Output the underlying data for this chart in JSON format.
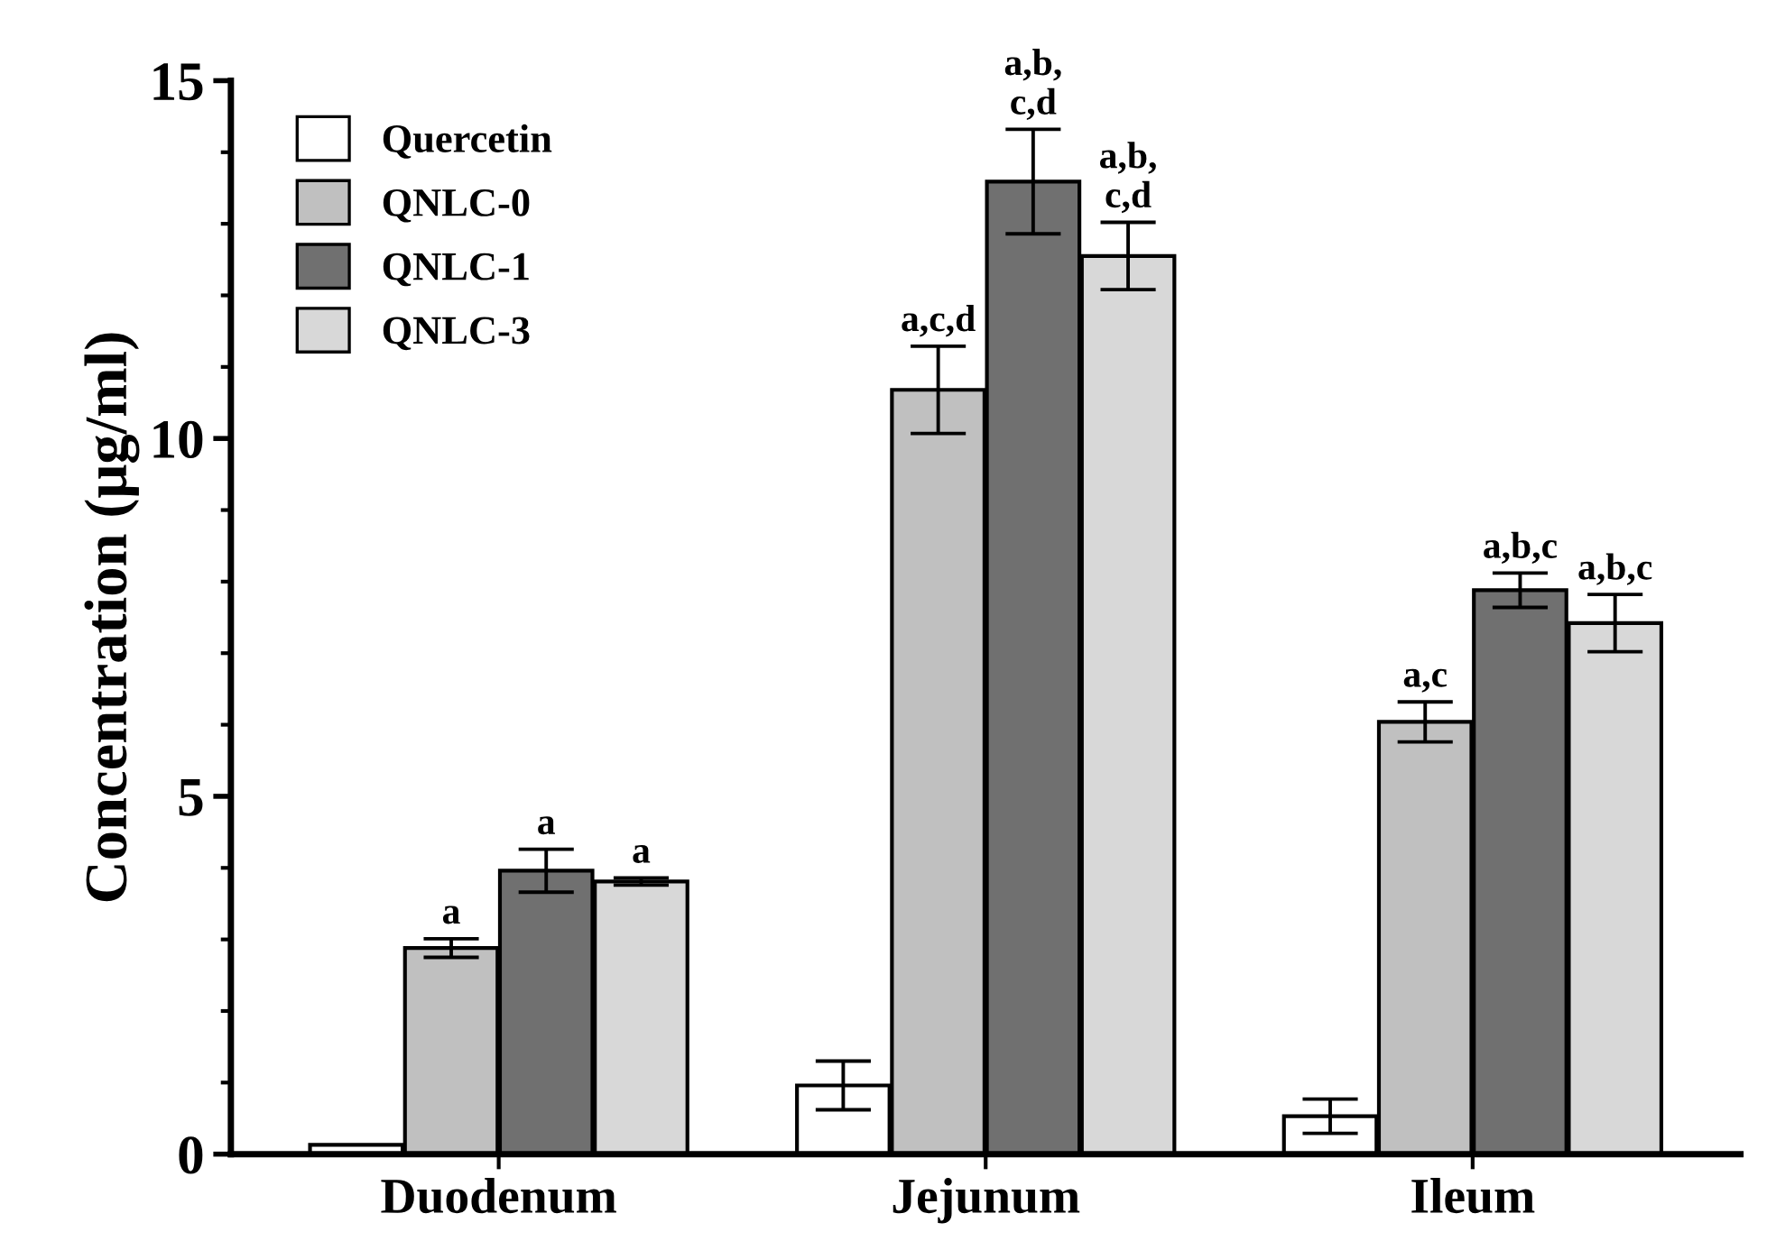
{
  "chart_data": {
    "type": "bar",
    "ylabel": "Concentration (μg/ml)",
    "categories": [
      "Duodenum",
      "Jejunum",
      "Ileum"
    ],
    "series": [
      {
        "name": "Quercetin",
        "color": "#ffffff",
        "values": [
          0.13,
          0.96,
          0.53
        ],
        "errors": [
          null,
          0.34,
          0.24
        ],
        "value_labels": [
          null,
          null,
          null
        ]
      },
      {
        "name": "QNLC-0",
        "color": "#c0c0c0",
        "values": [
          2.88,
          10.68,
          6.04
        ],
        "errors": [
          0.13,
          0.61,
          0.28
        ],
        "value_labels": [
          "a",
          "a,c,d",
          "a,c"
        ]
      },
      {
        "name": "QNLC-1",
        "color": "#707070",
        "values": [
          3.96,
          13.59,
          7.88
        ],
        "errors": [
          0.3,
          0.73,
          0.24
        ],
        "value_labels": [
          "a",
          "a,b,\nc,d",
          "a,b,c"
        ]
      },
      {
        "name": "QNLC-3",
        "color": "#d8d8d8",
        "values": [
          3.81,
          12.55,
          7.42
        ],
        "errors": [
          0.05,
          0.47,
          0.4
        ],
        "value_labels": [
          "a",
          "a,b,\nc,d",
          "a,b,c"
        ]
      }
    ],
    "ylim": [
      0,
      15
    ],
    "yticks": [
      0,
      {
        "value": 1,
        "label": null
      },
      {
        "value": 2,
        "label": null
      },
      {
        "value": 3,
        "label": null
      },
      {
        "value": 4,
        "label": null
      },
      5,
      {
        "value": 6,
        "label": null
      },
      {
        "value": 7,
        "label": null
      },
      {
        "value": 8,
        "label": null
      },
      {
        "value": 9,
        "label": null
      },
      10,
      {
        "value": 11,
        "label": null
      },
      {
        "value": 12,
        "label": null
      },
      {
        "value": 13,
        "label": null
      },
      {
        "value": 14,
        "label": null
      },
      15
    ],
    "legend": "top left",
    "grid": false
  }
}
